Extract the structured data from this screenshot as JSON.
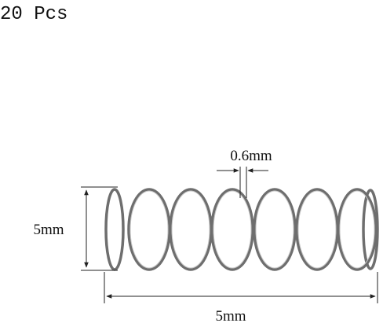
{
  "title": "20 Pcs",
  "dimensions": {
    "wire": "0.6mm",
    "height": "5mm",
    "length": "5mm"
  }
}
